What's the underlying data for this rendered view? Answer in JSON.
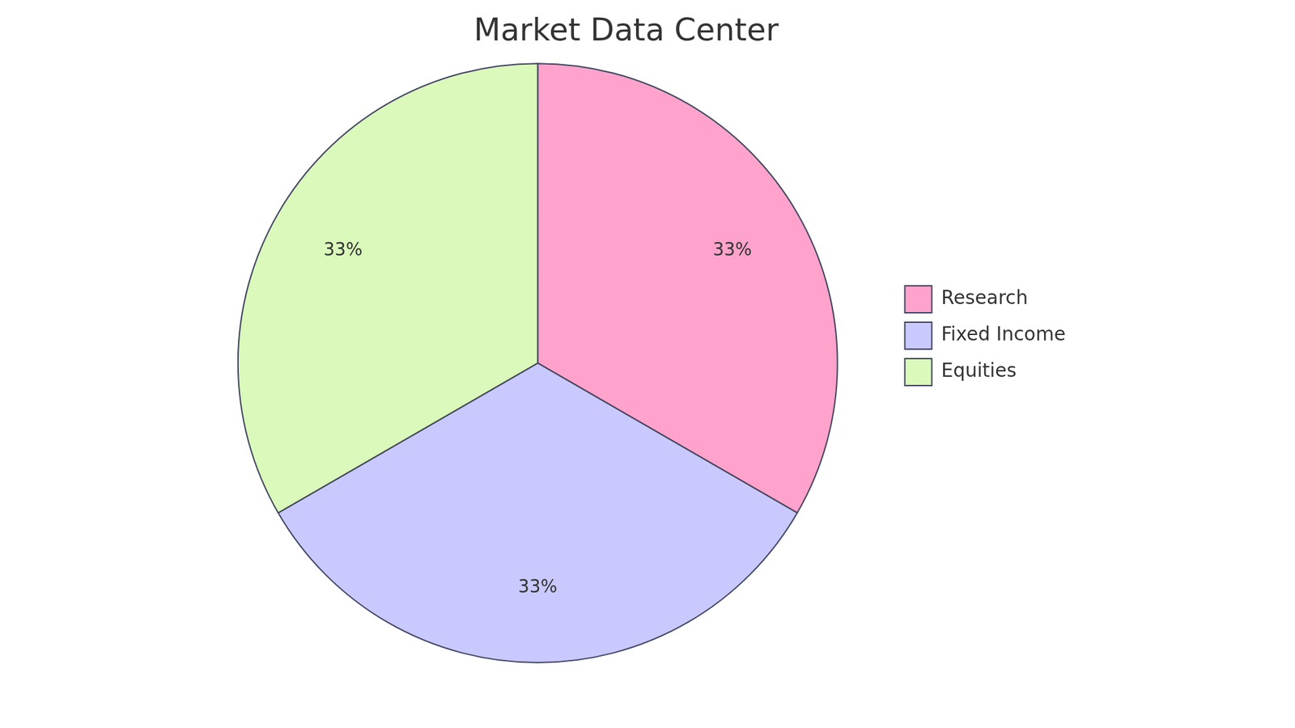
{
  "chart_data": {
    "type": "pie",
    "title": "Market Data Center",
    "categories": [
      "Research",
      "Fixed Income",
      "Equities"
    ],
    "values": [
      33,
      33,
      33
    ],
    "value_labels": [
      "33%",
      "33%",
      "33%"
    ],
    "colors": [
      "#ffa3cc",
      "#c9c9ff",
      "#daf9bb"
    ],
    "data_labels": true,
    "legend": "right"
  }
}
